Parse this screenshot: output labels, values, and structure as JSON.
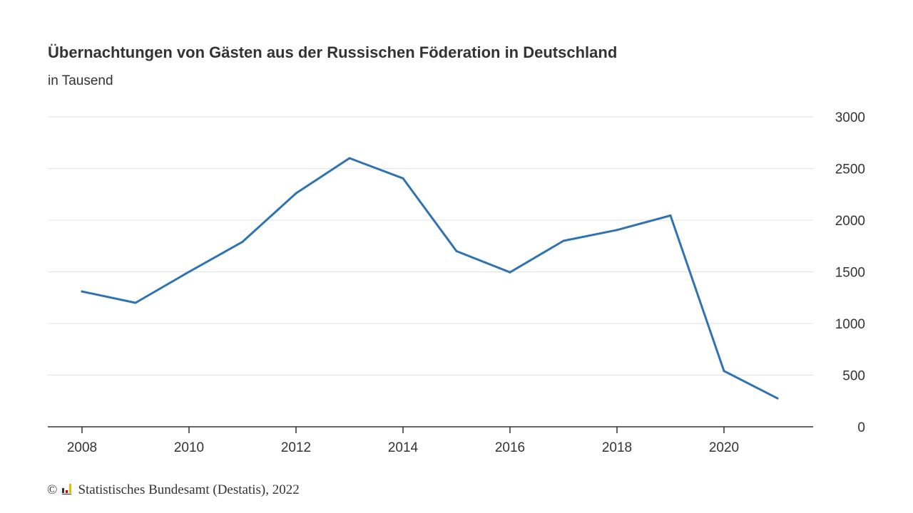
{
  "chart_data": {
    "type": "line",
    "title": "Übernachtungen von Gästen aus der Russischen Föderation in Deutschland",
    "subtitle": "in Tausend",
    "xlabel": "",
    "ylabel": "",
    "x": [
      2008,
      2009,
      2010,
      2011,
      2012,
      2013,
      2014,
      2015,
      2016,
      2017,
      2018,
      2019,
      2020,
      2021
    ],
    "series": [
      {
        "values": [
          1310,
          1200,
          1500,
          1790,
          2260,
          2600,
          2405,
          1700,
          1495,
          1800,
          1905,
          2045,
          540,
          275
        ]
      }
    ],
    "x_ticks": [
      "2008",
      "2010",
      "2012",
      "2014",
      "2016",
      "2018",
      "2020"
    ],
    "y_ticks": [
      "0",
      "500",
      "1000",
      "1500",
      "2000",
      "2500",
      "3000"
    ],
    "ylim": [
      0,
      3000
    ],
    "y_axis_position": "right",
    "grid": true,
    "line_color": "#2f73b3"
  },
  "source": {
    "copyright": "©",
    "text": "Statistisches Bundesamt (Destatis), 2022"
  }
}
